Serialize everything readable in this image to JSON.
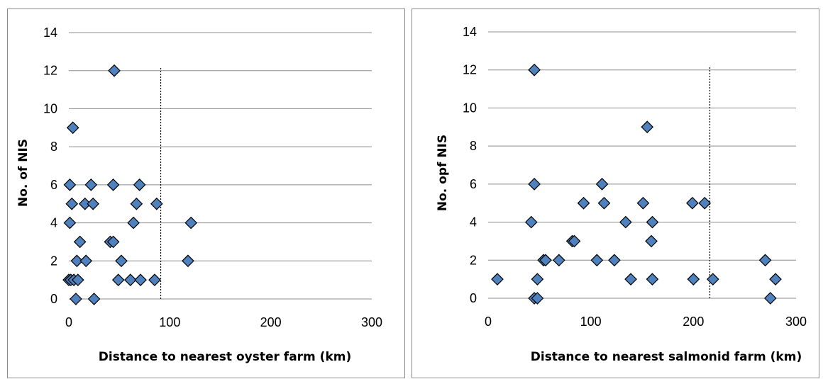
{
  "chart_data": [
    {
      "type": "scatter",
      "xlabel": "Distance to nearest oyster farm (km)",
      "ylabel": "No.  of NIS",
      "xlim": [
        0,
        300
      ],
      "ylim": [
        0,
        14
      ],
      "xticks": [
        "0",
        "100",
        "200",
        "300"
      ],
      "yticks": [
        "0",
        "2",
        "4",
        "6",
        "8",
        "10",
        "12",
        "14"
      ],
      "grid": "horizontal",
      "reference_line_x": 91,
      "marker_color": "#4f81bd",
      "points": [
        {
          "x": 0,
          "y": 1
        },
        {
          "x": 2,
          "y": 1
        },
        {
          "x": 5,
          "y": 1
        },
        {
          "x": 9,
          "y": 1
        },
        {
          "x": 7,
          "y": 0
        },
        {
          "x": 25,
          "y": 0
        },
        {
          "x": 8,
          "y": 2
        },
        {
          "x": 17,
          "y": 2
        },
        {
          "x": 11,
          "y": 3
        },
        {
          "x": 1,
          "y": 4
        },
        {
          "x": 3,
          "y": 5
        },
        {
          "x": 16,
          "y": 5
        },
        {
          "x": 24,
          "y": 5
        },
        {
          "x": 1,
          "y": 6
        },
        {
          "x": 22,
          "y": 6
        },
        {
          "x": 44,
          "y": 6
        },
        {
          "x": 70,
          "y": 6
        },
        {
          "x": 4,
          "y": 9
        },
        {
          "x": 45,
          "y": 12
        },
        {
          "x": 41,
          "y": 3
        },
        {
          "x": 44,
          "y": 3
        },
        {
          "x": 52,
          "y": 2
        },
        {
          "x": 49,
          "y": 1
        },
        {
          "x": 61,
          "y": 1
        },
        {
          "x": 71,
          "y": 1
        },
        {
          "x": 85,
          "y": 1
        },
        {
          "x": 64,
          "y": 4
        },
        {
          "x": 67,
          "y": 5
        },
        {
          "x": 87,
          "y": 5
        },
        {
          "x": 118,
          "y": 2
        },
        {
          "x": 121,
          "y": 4
        }
      ]
    },
    {
      "type": "scatter",
      "xlabel": "Distance to nearest salmonid farm (km)",
      "ylabel": "No.  opf NIS",
      "xlim": [
        0,
        300
      ],
      "ylim": [
        0,
        14
      ],
      "xticks": [
        "0",
        "100",
        "200",
        "300"
      ],
      "yticks": [
        "0",
        "2",
        "4",
        "6",
        "8",
        "10",
        "12",
        "14"
      ],
      "grid": "horizontal",
      "reference_line_x": 216,
      "marker_color": "#4f81bd",
      "points": [
        {
          "x": 9,
          "y": 1
        },
        {
          "x": 42,
          "y": 4
        },
        {
          "x": 45,
          "y": 12
        },
        {
          "x": 45,
          "y": 6
        },
        {
          "x": 45,
          "y": 0
        },
        {
          "x": 48,
          "y": 0
        },
        {
          "x": 48,
          "y": 1
        },
        {
          "x": 54,
          "y": 2
        },
        {
          "x": 56,
          "y": 2
        },
        {
          "x": 69,
          "y": 2
        },
        {
          "x": 82,
          "y": 3
        },
        {
          "x": 84,
          "y": 3
        },
        {
          "x": 93,
          "y": 5
        },
        {
          "x": 106,
          "y": 2
        },
        {
          "x": 111,
          "y": 6
        },
        {
          "x": 113,
          "y": 5
        },
        {
          "x": 123,
          "y": 2
        },
        {
          "x": 134,
          "y": 4
        },
        {
          "x": 139,
          "y": 1
        },
        {
          "x": 151,
          "y": 5
        },
        {
          "x": 155,
          "y": 9
        },
        {
          "x": 159,
          "y": 3
        },
        {
          "x": 160,
          "y": 4
        },
        {
          "x": 160,
          "y": 1
        },
        {
          "x": 199,
          "y": 5
        },
        {
          "x": 200,
          "y": 1
        },
        {
          "x": 211,
          "y": 5
        },
        {
          "x": 219,
          "y": 1
        },
        {
          "x": 270,
          "y": 2
        },
        {
          "x": 275,
          "y": 0
        },
        {
          "x": 280,
          "y": 1
        }
      ]
    }
  ]
}
